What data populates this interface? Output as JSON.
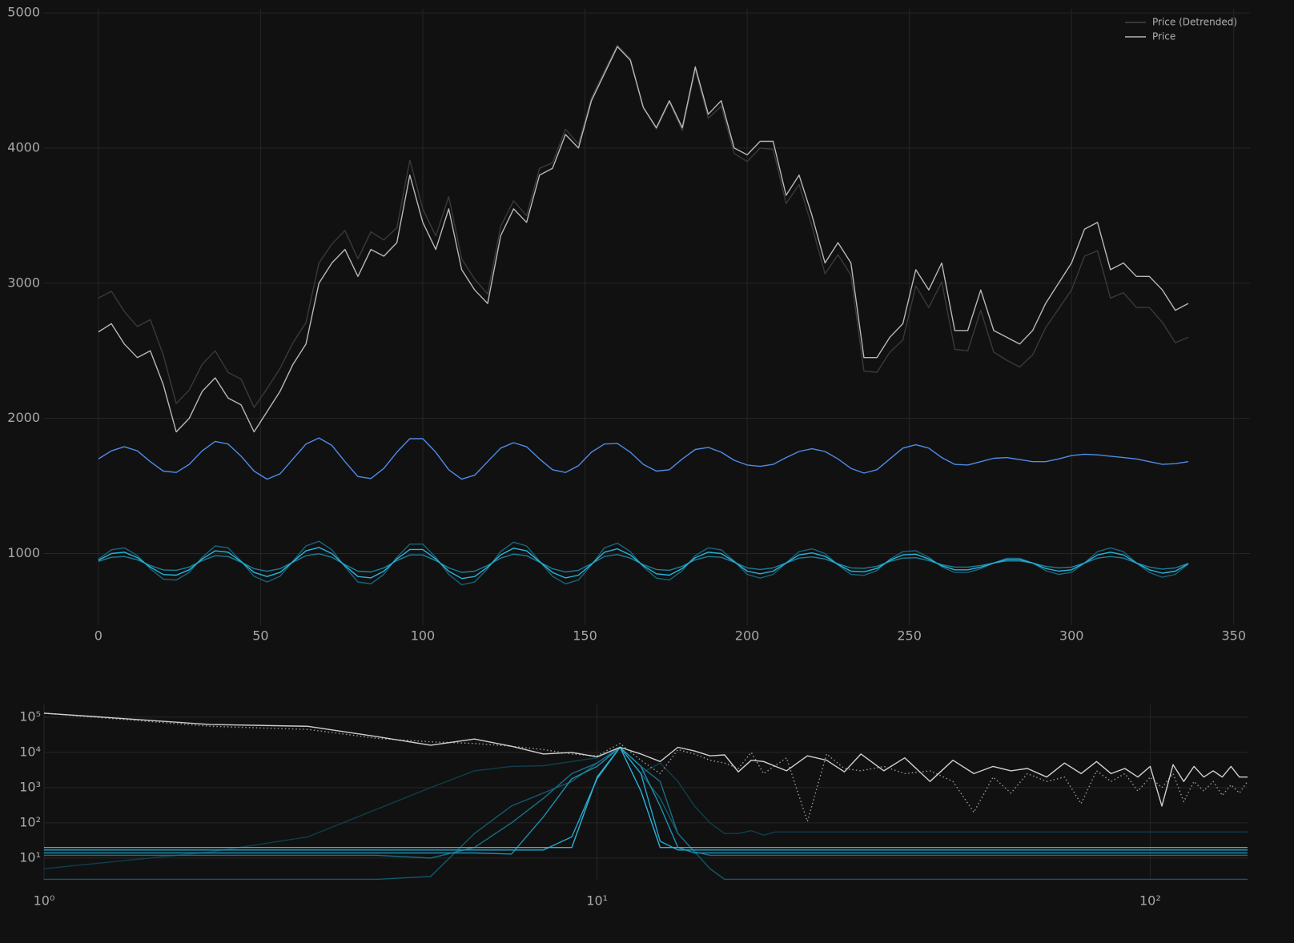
{
  "chart_data": [
    {
      "type": "line",
      "grid": true,
      "legend": "upper right",
      "xlim": [
        -17,
        355
      ],
      "ylim": [
        470,
        5030
      ],
      "xticks": [
        0,
        50,
        100,
        150,
        200,
        250,
        300,
        350
      ],
      "yticks": [
        1000,
        2000,
        3000,
        4000,
        5000
      ],
      "x": [
        0,
        4,
        8,
        12,
        16,
        20,
        24,
        28,
        32,
        36,
        40,
        44,
        48,
        52,
        56,
        60,
        64,
        68,
        72,
        76,
        80,
        84,
        88,
        92,
        96,
        100,
        104,
        108,
        112,
        116,
        120,
        124,
        128,
        132,
        136,
        140,
        144,
        148,
        152,
        156,
        160,
        164,
        168,
        172,
        176,
        180,
        184,
        188,
        192,
        196,
        200,
        204,
        208,
        212,
        216,
        220,
        224,
        228,
        232,
        236,
        240,
        244,
        248,
        252,
        256,
        260,
        264,
        268,
        272,
        276,
        280,
        284,
        288,
        292,
        296,
        300,
        304,
        308,
        312,
        316,
        320,
        324,
        328,
        332,
        336
      ],
      "series": [
        {
          "name": "Price (Detrended)",
          "color": "#3a3a3a",
          "values": [
            2890,
            2940,
            2790,
            2680,
            2730,
            2470,
            2110,
            2210,
            2400,
            2500,
            2340,
            2290,
            2080,
            2220,
            2370,
            2560,
            2710,
            3150,
            3290,
            3390,
            3180,
            3380,
            3320,
            3410,
            3910,
            3550,
            3350,
            3640,
            3180,
            3030,
            2920,
            3420,
            3610,
            3500,
            3850,
            3890,
            4140,
            4030,
            4370,
            4570,
            4760,
            4660,
            4300,
            4140,
            4340,
            4130,
            4580,
            4220,
            4310,
            3960,
            3900,
            4000,
            3990,
            3590,
            3730,
            3420,
            3070,
            3210,
            3060,
            2350,
            2340,
            2490,
            2580,
            2980,
            2820,
            3010,
            2510,
            2500,
            2800,
            2490,
            2430,
            2380,
            2470,
            2670,
            2810,
            2950,
            3200,
            3240,
            2890,
            2930,
            2820,
            2820,
            2710,
            2560,
            2600
          ]
        },
        {
          "name": "Price",
          "color": "#b8b8b8",
          "values": [
            2640,
            2700,
            2550,
            2450,
            2500,
            2250,
            1900,
            2000,
            2200,
            2300,
            2150,
            2100,
            1900,
            2050,
            2200,
            2400,
            2550,
            3000,
            3150,
            3250,
            3050,
            3250,
            3200,
            3300,
            3800,
            3450,
            3250,
            3550,
            3100,
            2950,
            2850,
            3350,
            3550,
            3450,
            3800,
            3850,
            4100,
            4000,
            4350,
            4550,
            4750,
            4650,
            4300,
            4150,
            4350,
            4150,
            4600,
            4250,
            4350,
            4000,
            3950,
            4050,
            4050,
            3650,
            3800,
            3500,
            3150,
            3300,
            3150,
            2450,
            2450,
            2600,
            2700,
            3100,
            2950,
            3150,
            2650,
            2650,
            2950,
            2650,
            2600,
            2550,
            2650,
            2850,
            3000,
            3150,
            3400,
            3450,
            3100,
            3150,
            3050,
            3050,
            2950,
            2800,
            2850
          ]
        },
        {
          "color": "#4f8be8",
          "values": [
            1700,
            1760,
            1790,
            1760,
            1680,
            1610,
            1600,
            1660,
            1760,
            1830,
            1810,
            1720,
            1610,
            1550,
            1590,
            1700,
            1810,
            1855,
            1800,
            1680,
            1570,
            1555,
            1630,
            1750,
            1850,
            1850,
            1750,
            1620,
            1550,
            1580,
            1680,
            1780,
            1820,
            1790,
            1700,
            1620,
            1600,
            1650,
            1750,
            1810,
            1815,
            1750,
            1660,
            1610,
            1620,
            1700,
            1770,
            1785,
            1750,
            1690,
            1655,
            1645,
            1660,
            1710,
            1755,
            1775,
            1755,
            1700,
            1630,
            1595,
            1620,
            1700,
            1780,
            1805,
            1780,
            1710,
            1660,
            1655,
            1680,
            1705,
            1710,
            1695,
            1680,
            1680,
            1700,
            1725,
            1735,
            1730,
            1720,
            1710,
            1700,
            1680,
            1660,
            1665,
            1680
          ]
        },
        {
          "color": "#17667c",
          "values": [
            958,
            1028,
            1042,
            986,
            888,
            811,
            804,
            860,
            972,
            1056,
            1042,
            944,
            832,
            790,
            832,
            944,
            1056,
            1091,
            1028,
            902,
            790,
            776,
            846,
            972,
            1070,
            1070,
            972,
            846,
            769,
            790,
            888,
            1014,
            1084,
            1056,
            944,
            832,
            776,
            804,
            916,
            1042,
            1077,
            1014,
            902,
            818,
            804,
            874,
            986,
            1042,
            1028,
            944,
            846,
            818,
            846,
            930,
            1014,
            1035,
            1000,
            916,
            846,
            839,
            874,
            958,
            1014,
            1021,
            972,
            902,
            860,
            860,
            888,
            930,
            965,
            965,
            930,
            874,
            846,
            860,
            930,
            1014,
            1042,
            1014,
            930,
            860,
            825,
            846,
            923
          ]
        },
        {
          "color": "#1b7f9a",
          "values": [
            942,
            972,
            978,
            954,
            912,
            879,
            876,
            900,
            948,
            984,
            978,
            936,
            888,
            870,
            888,
            936,
            984,
            999,
            972,
            918,
            870,
            864,
            894,
            948,
            990,
            990,
            948,
            894,
            861,
            870,
            912,
            966,
            996,
            984,
            936,
            888,
            864,
            876,
            924,
            978,
            993,
            966,
            918,
            882,
            876,
            906,
            954,
            978,
            972,
            936,
            894,
            882,
            894,
            930,
            966,
            975,
            960,
            924,
            894,
            891,
            906,
            942,
            966,
            969,
            948,
            918,
            900,
            900,
            912,
            930,
            945,
            945,
            930,
            906,
            894,
            900,
            930,
            966,
            978,
            966,
            930,
            900,
            885,
            894,
            927
          ]
        },
        {
          "color": "#2ab4dc",
          "values": [
            950,
            1000,
            1010,
            970,
            900,
            845,
            840,
            880,
            960,
            1020,
            1010,
            940,
            860,
            830,
            860,
            940,
            1020,
            1045,
            1000,
            910,
            830,
            820,
            870,
            960,
            1030,
            1030,
            960,
            870,
            815,
            830,
            900,
            990,
            1040,
            1020,
            940,
            860,
            820,
            840,
            920,
            1010,
            1035,
            990,
            910,
            850,
            840,
            890,
            970,
            1010,
            1000,
            940,
            870,
            850,
            870,
            930,
            990,
            1005,
            980,
            920,
            870,
            865,
            890,
            950,
            990,
            995,
            960,
            910,
            880,
            880,
            900,
            930,
            955,
            955,
            930,
            890,
            870,
            880,
            930,
            990,
            1010,
            990,
            930,
            880,
            855,
            870,
            925
          ]
        }
      ]
    },
    {
      "type": "line",
      "grid": true,
      "xscale": "log",
      "yscale": "log",
      "xlim": [
        1,
        150
      ],
      "ylim": [
        2.3,
        230000
      ],
      "xticks": [
        {
          "value": 1,
          "label": "10⁰"
        },
        {
          "value": 10,
          "label": "10¹"
        },
        {
          "value": 100,
          "label": "10²"
        }
      ],
      "yticks": [
        {
          "value": 10,
          "label": "10¹"
        },
        {
          "value": 100,
          "label": "10²"
        },
        {
          "value": 1000,
          "label": "10³"
        },
        {
          "value": 10000,
          "label": "10⁴"
        },
        {
          "value": 100000,
          "label": "10⁵"
        }
      ],
      "series": [
        {
          "color": "#0f3f4d",
          "x": [
            1,
            2,
            3,
            5,
            6,
            7,
            8,
            9,
            10,
            11,
            12,
            13,
            14,
            15,
            16,
            17,
            18,
            19,
            20,
            21,
            150
          ],
          "values": [
            5,
            15,
            40,
            1000,
            3000,
            4000,
            4200,
            5500,
            7000,
            14000,
            2500,
            5000,
            1500,
            300,
            100,
            50,
            50,
            60,
            45,
            55,
            55
          ]
        },
        {
          "color": "#135a6e",
          "x": [
            1,
            4,
            5,
            6,
            7,
            9,
            10,
            11,
            12,
            13,
            14,
            16,
            17,
            18,
            150
          ],
          "values": [
            2.5,
            2.5,
            3,
            50,
            300,
            1500,
            5000,
            14000,
            2500,
            500,
            50,
            5,
            2.5,
            2.5,
            2.5
          ]
        },
        {
          "color": "#17708a",
          "x": [
            1,
            4,
            5,
            6,
            7,
            8,
            9,
            10,
            11,
            12,
            13,
            14,
            15,
            16,
            150
          ],
          "values": [
            12,
            12,
            10,
            20,
            100,
            500,
            2500,
            5000,
            14000,
            4000,
            1500,
            50,
            15,
            12,
            12
          ]
        },
        {
          "color": "#1d8fb0",
          "x": [
            1,
            6,
            7,
            8,
            9,
            10,
            11,
            12,
            13,
            14,
            15,
            150
          ],
          "values": [
            14,
            14,
            13,
            150,
            1800,
            4000,
            14000,
            4000,
            300,
            20,
            14,
            14
          ]
        },
        {
          "color": "#22a6cc",
          "x": [
            1,
            8,
            9,
            10,
            11,
            12,
            13,
            14,
            150
          ],
          "values": [
            17,
            17,
            40,
            1800,
            14000,
            2500,
            30,
            17,
            17
          ]
        },
        {
          "color": "#2ab4dc",
          "x": [
            1,
            9,
            10,
            11,
            12,
            13,
            150
          ],
          "values": [
            20,
            20,
            2000,
            14000,
            800,
            20,
            20
          ]
        },
        {
          "color": "#9a9a9a",
          "linestyle": "dotted",
          "x": [
            1,
            2,
            3,
            4,
            5,
            6,
            7,
            8,
            9,
            10,
            11,
            12,
            13,
            14,
            15,
            16,
            17,
            18,
            19,
            20,
            22,
            24,
            26,
            28,
            30,
            33,
            36,
            40,
            44,
            48,
            52,
            56,
            60,
            65,
            70,
            75,
            80,
            85,
            90,
            95,
            100,
            105,
            110,
            115,
            120,
            125,
            130,
            135,
            140,
            145,
            150
          ],
          "values": [
            130000,
            55000,
            45000,
            25000,
            20000,
            18000,
            15000,
            12000,
            9000,
            8000,
            18000,
            6000,
            2500,
            12000,
            9000,
            6000,
            5000,
            3500,
            10000,
            2500,
            7000,
            110,
            9000,
            3500,
            3000,
            4000,
            2500,
            3000,
            1500,
            200,
            2000,
            700,
            2500,
            1500,
            2000,
            350,
            3000,
            1500,
            2500,
            800,
            2000,
            1000,
            2500,
            400,
            1500,
            800,
            1500,
            600,
            1200,
            700,
            1500
          ]
        },
        {
          "color": "#d0d0d0",
          "x": [
            1,
            2,
            3,
            4,
            5,
            6,
            7,
            8,
            9,
            10,
            11,
            12,
            13,
            14,
            15,
            16,
            17,
            18,
            19,
            20,
            22,
            24,
            26,
            28,
            30,
            33,
            36,
            40,
            44,
            48,
            52,
            56,
            60,
            65,
            70,
            75,
            80,
            85,
            90,
            95,
            100,
            105,
            110,
            115,
            120,
            125,
            130,
            135,
            140,
            145,
            150
          ],
          "values": [
            130000,
            62000,
            55000,
            28000,
            16000,
            24000,
            15000,
            9000,
            10000,
            7500,
            14000,
            9000,
            5500,
            14000,
            11000,
            8000,
            8500,
            2800,
            6000,
            5500,
            3000,
            8000,
            6000,
            2800,
            9000,
            3000,
            7000,
            1500,
            6000,
            2500,
            4000,
            3000,
            3500,
            2000,
            5000,
            2500,
            5500,
            2500,
            3500,
            2000,
            4000,
            300,
            4500,
            1500,
            4000,
            2000,
            3000,
            2000,
            4000,
            2000,
            2000
          ]
        }
      ]
    }
  ]
}
